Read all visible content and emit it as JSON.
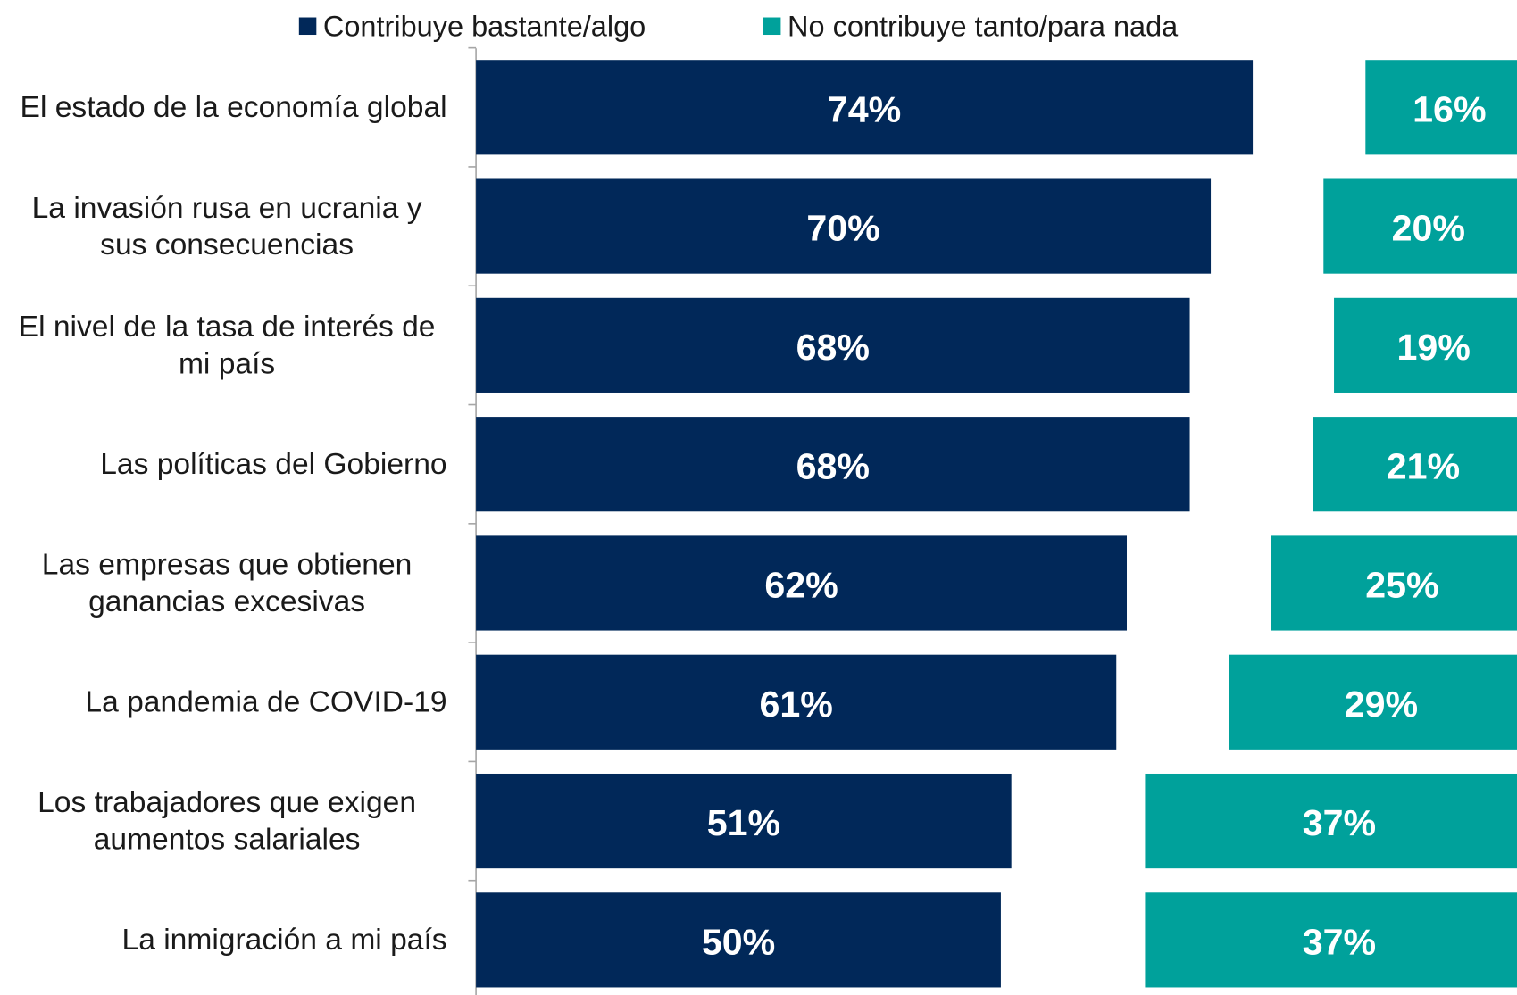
{
  "chart_data": {
    "type": "bar",
    "orientation": "horizontal",
    "categories": [
      "El estado de la economía global",
      "La invasión rusa en ucrania y sus consecuencias",
      "El nivel de la tasa de interés de mi país",
      "Las políticas del Gobierno",
      "Las empresas que obtienen ganancias excesivas",
      "La pandemia de COVID-19",
      "Los trabajadores que exigen aumentos salariales",
      "La inmigración a mi país"
    ],
    "series": [
      {
        "name": "Contribuye bastante/algo",
        "color": "#012859",
        "values": [
          74,
          70,
          68,
          68,
          62,
          61,
          51,
          50
        ],
        "value_labels": [
          "74%",
          "70%",
          "68%",
          "68%",
          "62%",
          "61%",
          "51%",
          "50%"
        ]
      },
      {
        "name": "No contribuye tanto/para nada",
        "color": "#00a19b",
        "values": [
          16,
          20,
          19,
          21,
          25,
          29,
          37,
          37
        ],
        "value_labels": [
          "16%",
          "20%",
          "19%",
          "21%",
          "25%",
          "29%",
          "37%",
          "37%"
        ]
      }
    ],
    "legend": "top"
  }
}
